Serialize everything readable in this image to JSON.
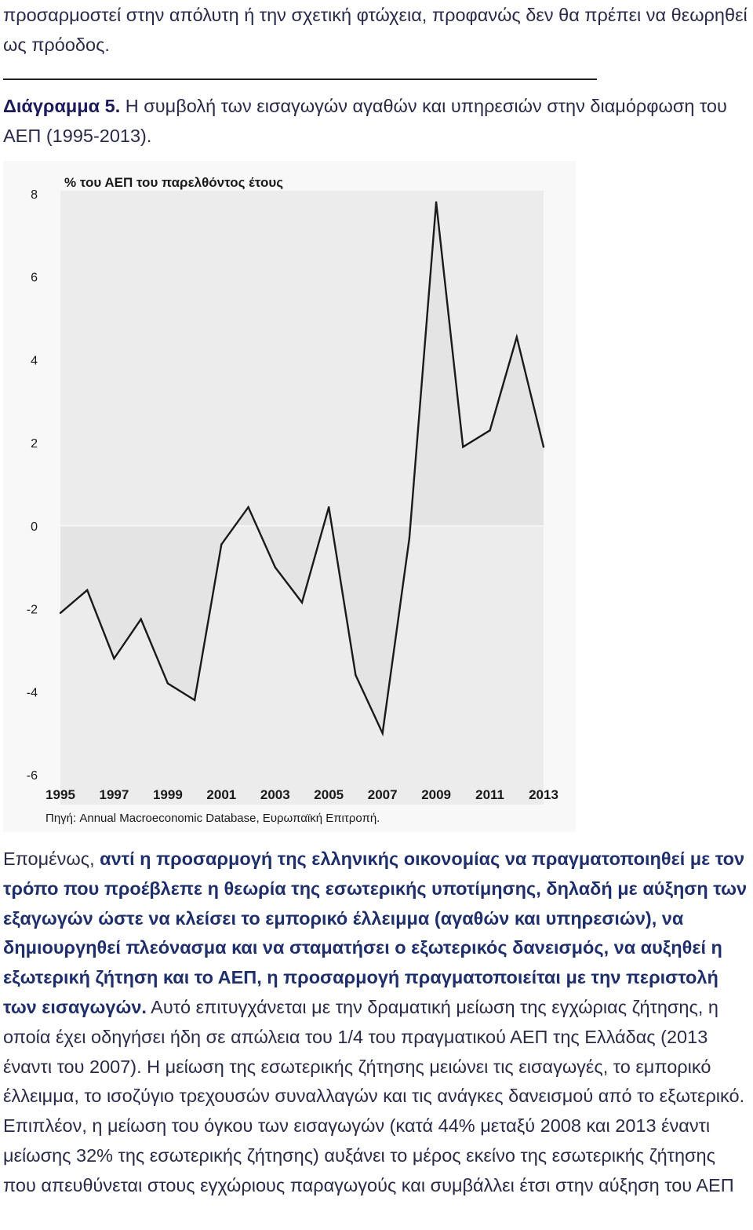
{
  "intro_text": "προσαρμοστεί στην απόλυτη ή την σχετική φτώχεια, προφανώς δεν θα πρέπει να θεωρηθεί ως πρόοδος.",
  "caption": {
    "label": "Διάγραμμα 5.",
    "text": " Η συμβολή των εισαγωγών αγαθών και υπηρεσιών στην διαμόρφωση του ΑΕΠ (1995-2013)."
  },
  "chart_data": {
    "type": "area",
    "title": "% του ΑΕΠ του παρελθόντος έτους",
    "x": [
      1995,
      1996,
      1997,
      1998,
      1999,
      2000,
      2001,
      2002,
      2003,
      2004,
      2005,
      2006,
      2007,
      2008,
      2009,
      2010,
      2011,
      2012,
      2013
    ],
    "values": [
      -2.1,
      -1.55,
      -3.2,
      -2.25,
      -3.8,
      -4.2,
      -0.45,
      0.45,
      -1.0,
      -1.85,
      0.45,
      -3.6,
      -5.0,
      -0.3,
      7.8,
      1.9,
      2.3,
      4.55,
      1.9
    ],
    "x_tick_labels": [
      "1995",
      "1997",
      "1999",
      "2001",
      "2003",
      "2005",
      "2007",
      "2009",
      "2011",
      "2013"
    ],
    "y_tick_labels": [
      "8",
      "6",
      "4",
      "2",
      "0",
      "-2",
      "-4",
      "-6"
    ],
    "ylim": [
      -6,
      8
    ],
    "xlabel": "",
    "ylabel": "",
    "source": "Πηγή: Annual Macroeconomic Database, Ευρωπαϊκή Επιτροπή.",
    "colors": {
      "line": "#1a1a1a",
      "fill": "#e4e4e4",
      "plot_bg": "#ececec",
      "figure_bg": "#f8f8f8"
    },
    "grid": false
  },
  "body": {
    "lead": "Επομένως, ",
    "bold": "αντί η προσαρμογή της ελληνικής οικονομίας να πραγματοποιηθεί με τον τρόπο που προέβλεπε η θεωρία της εσωτερικής υποτίμησης, δηλαδή με αύξηση των εξαγωγών ώστε να κλείσει το εμπορικό έλλειμμα (αγαθών και υπηρεσιών), να δημιουργηθεί πλεόνασμα και να σταματήσει ο εξωτερικός δανεισμός, να αυξηθεί η εξωτερική ζήτηση και το ΑΕΠ, η προσαρμογή πραγματοποιείται με την περιστολή των εισαγωγών.",
    "rest": " Αυτό επιτυγχάνεται με την δραματική μείωση της εγχώριας ζήτησης, η οποία έχει οδηγήσει ήδη σε απώλεια του 1/4 του πραγματικού ΑΕΠ της Ελλάδας (2013 έναντι του 2007). Η μείωση της εσωτερικής ζήτησης μειώνει τις εισαγωγές, το εμπορικό έλλειμμα, το ισοζύγιο τρεχουσών συναλλαγών και τις ανάγκες δανεισμού από το εξωτερικό. Επιπλέον, η μείωση του όγκου των εισαγωγών (κατά 44% μεταξύ 2008 και 2013 έναντι μείωσης 32% της εσωτερικής ζήτησης) αυξάνει το μέρος εκείνο της εσωτερικής ζήτησης που απευθύνεται στους εγχώριους παραγωγούς και συμβάλλει έτσι στην αύξηση του ΑΕΠ"
  }
}
